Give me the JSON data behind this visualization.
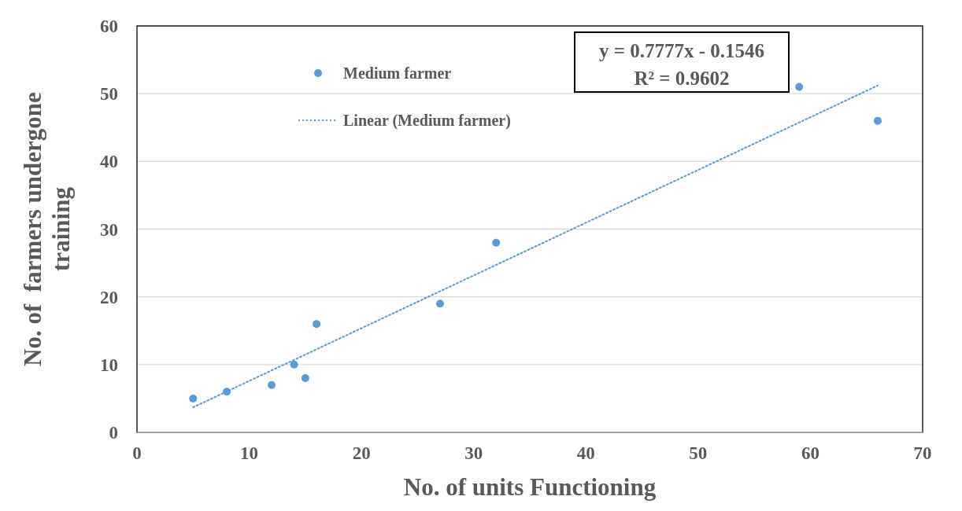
{
  "chart_data": {
    "type": "scatter",
    "xlabel": "No. of units Functioning",
    "ylabel": "No. of  farmers undergone training",
    "xlim": [
      0,
      70
    ],
    "xticks": [
      0,
      10,
      20,
      30,
      40,
      50,
      60,
      70
    ],
    "ylim": [
      0,
      60
    ],
    "yticks": [
      0,
      10,
      20,
      30,
      40,
      50,
      60
    ],
    "grid": "y",
    "legend": "top left",
    "annotations": [
      "y = 0.7777x - 0.1546",
      "R² = 0.9602"
    ],
    "series": [
      {
        "name": "Medium farmer",
        "type": "scatter",
        "color": "#5b9bd5",
        "marker": "circle",
        "x": [
          5,
          8,
          12,
          14,
          15,
          16,
          27,
          32,
          59,
          66
        ],
        "values": [
          5,
          6,
          7,
          10,
          8,
          16,
          19,
          28,
          51,
          46
        ]
      },
      {
        "name": "Linear (Medium farmer)",
        "type": "line",
        "color": "#5b9bd5",
        "marker": "none",
        "line_style": "dotted",
        "x": [
          5,
          66
        ],
        "values": [
          3.7,
          51.2
        ]
      }
    ]
  }
}
